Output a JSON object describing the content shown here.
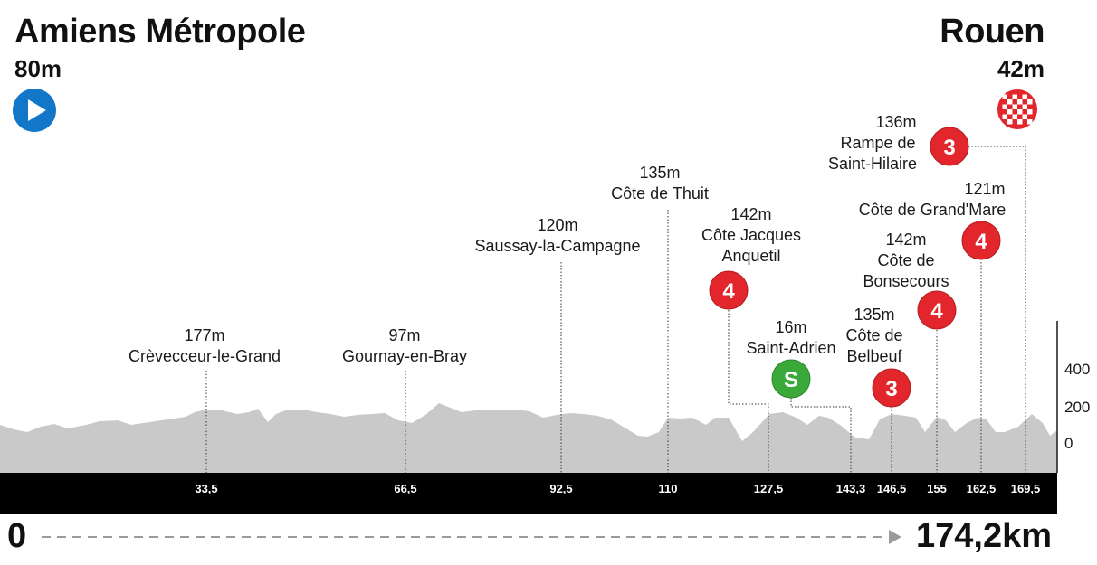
{
  "start": {
    "name": "Amiens Métropole",
    "altitude": "80m"
  },
  "finish": {
    "name": "Rouen",
    "altitude": "42m"
  },
  "distance": {
    "start_label": "0",
    "total_label": "174,2km"
  },
  "colors": {
    "climb_badge": "#e3262c",
    "sprint_badge": "#3aa93a",
    "start_icon": "#1276c9",
    "profile": "#c9c9c9",
    "axis_band": "#000000"
  },
  "y_axis": {
    "ticks": [
      "400",
      "200",
      "0"
    ]
  },
  "km_markers": [
    "33,5",
    "66,5",
    "92,5",
    "110",
    "127,5",
    "143,3",
    "146,5",
    "155",
    "162,5",
    "169,5"
  ],
  "points": [
    {
      "km": 33.5,
      "lines": [
        "177m",
        "Crèvecceur-le-Grand"
      ]
    },
    {
      "km": 66.5,
      "lines": [
        "97m",
        "Gournay-en-Bray"
      ]
    },
    {
      "km": 92.5,
      "lines": [
        "120m",
        "Saussay-la-Campagne"
      ]
    },
    {
      "km": 110,
      "lines": [
        "135m",
        "Côte de Thuit"
      ]
    },
    {
      "km": 127.5,
      "lines": [
        "142m",
        "Côte Jacques",
        "Anquetil"
      ],
      "badge": "4",
      "type": "climb"
    },
    {
      "km": 143.3,
      "lines": [
        "16m",
        "Saint-Adrien"
      ],
      "badge": "S",
      "type": "sprint"
    },
    {
      "km": 146.5,
      "lines": [
        "135m",
        "Côte de",
        "Belbeuf"
      ],
      "badge": "3",
      "type": "climb"
    },
    {
      "km": 155,
      "lines": [
        "142m",
        "Côte de",
        "Bonsecours"
      ],
      "badge": "4",
      "type": "climb"
    },
    {
      "km": 162.5,
      "lines": [
        "121m",
        "Côte de Grand'Mare"
      ],
      "badge": "4",
      "type": "climb"
    },
    {
      "km": 169.5,
      "lines": [
        "136m",
        "Rampe de",
        "Saint-Hilaire"
      ],
      "badge": "3",
      "type": "climb"
    }
  ]
}
